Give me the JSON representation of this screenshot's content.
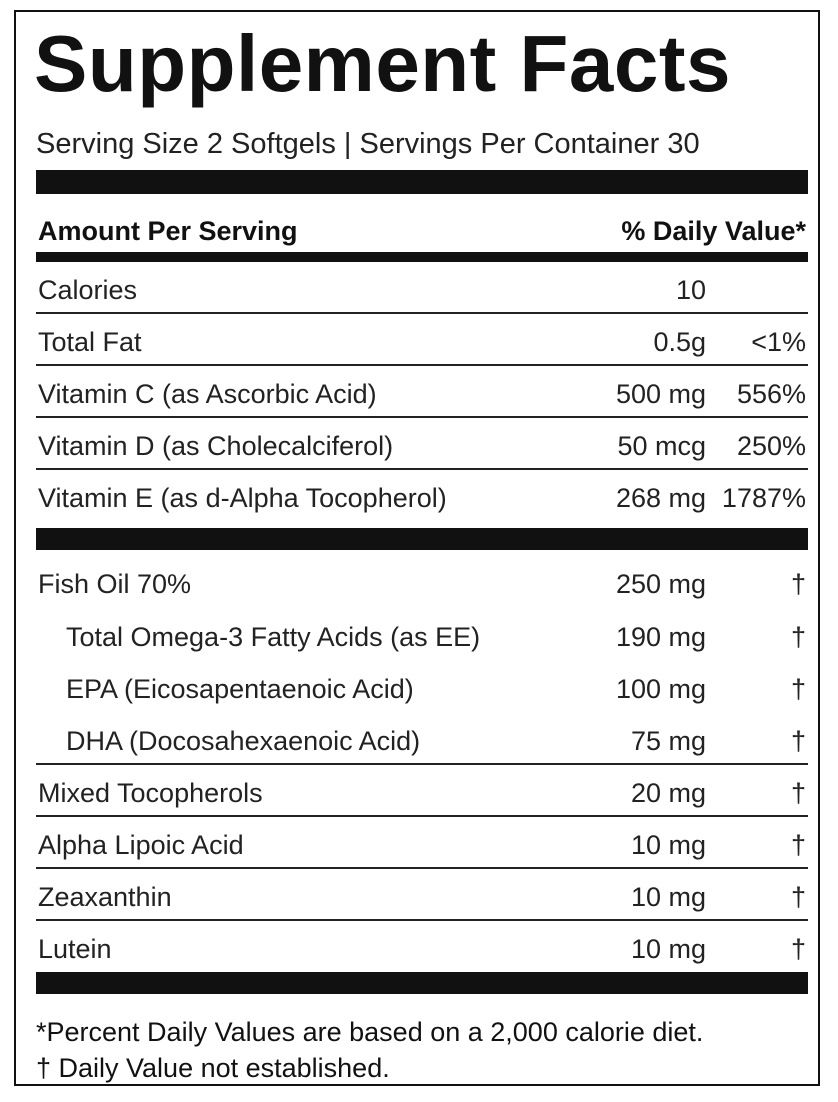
{
  "title": "Supplement Facts",
  "serving": "Serving Size 2 Softgels | Servings Per Container 30",
  "header": {
    "left": "Amount Per Serving",
    "right": "% Daily Value*"
  },
  "vitamins": [
    {
      "name": "Calories",
      "amount": "10",
      "dv": ""
    },
    {
      "name": "Total Fat",
      "amount": "0.5g",
      "dv": "<1%"
    },
    {
      "name": "Vitamin C (as Ascorbic Acid)",
      "amount": "500 mg",
      "dv": "556%"
    },
    {
      "name": "Vitamin D (as Cholecalciferol)",
      "amount": "50 mcg",
      "dv": "250%"
    },
    {
      "name": "Vitamin E (as d-Alpha Tocopherol)",
      "amount": "268 mg",
      "dv": "1787%"
    }
  ],
  "others": [
    {
      "name": "Fish Oil 70%",
      "amount": "250 mg",
      "dv": "†",
      "indent": false
    },
    {
      "name": "Total Omega-3 Fatty Acids (as EE)",
      "amount": "190 mg",
      "dv": "†",
      "indent": true
    },
    {
      "name": "EPA (Eicosapentaenoic Acid)",
      "amount": "100 mg",
      "dv": "†",
      "indent": true
    },
    {
      "name": "DHA (Docosahexaenoic Acid)",
      "amount": "75 mg",
      "dv": "†",
      "indent": true
    },
    {
      "name": "Mixed Tocopherols",
      "amount": "20 mg",
      "dv": "†",
      "indent": false
    },
    {
      "name": "Alpha Lipoic Acid",
      "amount": "10 mg",
      "dv": "†",
      "indent": false
    },
    {
      "name": "Zeaxanthin",
      "amount": "10 mg",
      "dv": "†",
      "indent": false
    },
    {
      "name": "Lutein",
      "amount": "10 mg",
      "dv": "†",
      "indent": false
    }
  ],
  "footnotes": {
    "daily_value": "*Percent Daily Values are based on a 2,000 calorie diet.",
    "not_established": "† Daily Value not established."
  }
}
